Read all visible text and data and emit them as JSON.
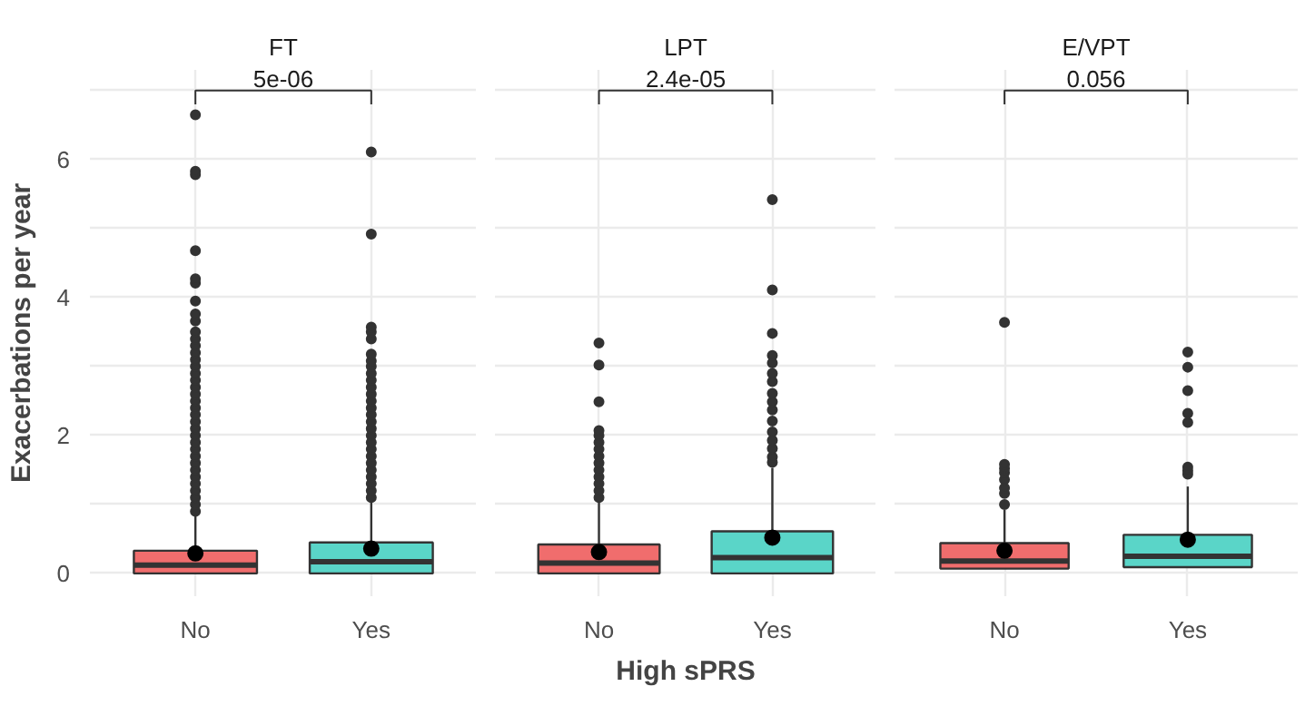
{
  "chart_data": [
    {
      "type": "box",
      "title": "FT",
      "ylabel": "Exacerbations per year",
      "categories": [
        "No",
        "Yes"
      ],
      "colors": [
        "#f06d6d",
        "#5ad5c8"
      ],
      "annotations": [
        "5e-06"
      ],
      "ylim": [
        -0.33,
        7.3
      ],
      "yticks": [
        0,
        {
          "value": 1,
          "label": null
        },
        2,
        {
          "value": 3,
          "label": null
        },
        4,
        {
          "value": 5,
          "label": null
        },
        6,
        {
          "value": 7,
          "label": null
        }
      ],
      "grid": true,
      "boxes": [
        {
          "low": 0,
          "q1": 0,
          "median": 0.12,
          "q3": 0.33,
          "high": 0.84,
          "mean": 0.29,
          "outliers": [
            0.9,
            1.0,
            1.1,
            1.2,
            1.3,
            1.4,
            1.5,
            1.6,
            1.7,
            1.8,
            1.9,
            2.0,
            2.1,
            2.2,
            2.3,
            2.4,
            2.5,
            2.6,
            2.7,
            2.8,
            2.9,
            3.0,
            3.1,
            3.2,
            3.3,
            3.4,
            3.5,
            3.66,
            3.76,
            3.95,
            4.21,
            4.27,
            4.68,
            5.78,
            5.83,
            6.65
          ]
        },
        {
          "low": 0,
          "q1": 0,
          "median": 0.17,
          "q3": 0.45,
          "high": 1.08,
          "mean": 0.36,
          "outliers": [
            1.1,
            1.2,
            1.3,
            1.4,
            1.5,
            1.6,
            1.7,
            1.8,
            1.9,
            2.0,
            2.1,
            2.2,
            2.3,
            2.4,
            2.5,
            2.6,
            2.7,
            2.8,
            2.9,
            3.0,
            3.08,
            3.18,
            3.4,
            3.5,
            3.57,
            4.92,
            6.11
          ]
        }
      ]
    },
    {
      "type": "box",
      "title": "LPT",
      "xlabel": "High sPRS",
      "categories": [
        "No",
        "Yes"
      ],
      "colors": [
        "#f06d6d",
        "#5ad5c8"
      ],
      "annotations": [
        "2.4e-05"
      ],
      "ylim": [
        -0.33,
        7.3
      ],
      "yticks": [
        0,
        {
          "value": 1,
          "label": null
        },
        2,
        {
          "value": 3,
          "label": null
        },
        4,
        {
          "value": 5,
          "label": null
        },
        6,
        {
          "value": 7,
          "label": null
        }
      ],
      "grid": true,
      "tick_labels": "x",
      "boxes": [
        {
          "low": 0,
          "q1": 0,
          "median": 0.15,
          "q3": 0.42,
          "high": 1.04,
          "mean": 0.31,
          "outliers": [
            1.1,
            1.2,
            1.3,
            1.4,
            1.5,
            1.6,
            1.7,
            1.8,
            1.9,
            2.0,
            2.07,
            2.49,
            3.02,
            3.34
          ]
        },
        {
          "low": 0,
          "q1": 0,
          "median": 0.23,
          "q3": 0.61,
          "high": 1.53,
          "mean": 0.52,
          "outliers": [
            1.61,
            1.69,
            1.81,
            1.93,
            2.05,
            2.21,
            2.37,
            2.49,
            2.61,
            2.78,
            2.9,
            3.05,
            3.16,
            3.48,
            4.11,
            5.42
          ]
        }
      ]
    },
    {
      "type": "box",
      "title": "E/VPT",
      "categories": [
        "No",
        "Yes"
      ],
      "colors": [
        "#f06d6d",
        "#5ad5c8"
      ],
      "annotations": [
        "0.056"
      ],
      "ylim": [
        -0.33,
        7.3
      ],
      "yticks": [
        0,
        {
          "value": 1,
          "label": null
        },
        2,
        {
          "value": 3,
          "label": null
        },
        4,
        {
          "value": 5,
          "label": null
        },
        6,
        {
          "value": 7,
          "label": null
        }
      ],
      "grid": true,
      "tick_labels": "x",
      "boxes": [
        {
          "low": 0.07,
          "q1": 0.07,
          "median": 0.18,
          "q3": 0.44,
          "high": 0.92,
          "mean": 0.33,
          "outliers": [
            1.0,
            1.16,
            1.24,
            1.36,
            1.46,
            1.52,
            1.58,
            3.64
          ]
        },
        {
          "low": 0.09,
          "q1": 0.09,
          "median": 0.25,
          "q3": 0.56,
          "high": 1.26,
          "mean": 0.49,
          "outliers": [
            1.44,
            1.49,
            1.54,
            2.19,
            2.32,
            2.65,
            2.99,
            3.21
          ]
        }
      ]
    }
  ]
}
